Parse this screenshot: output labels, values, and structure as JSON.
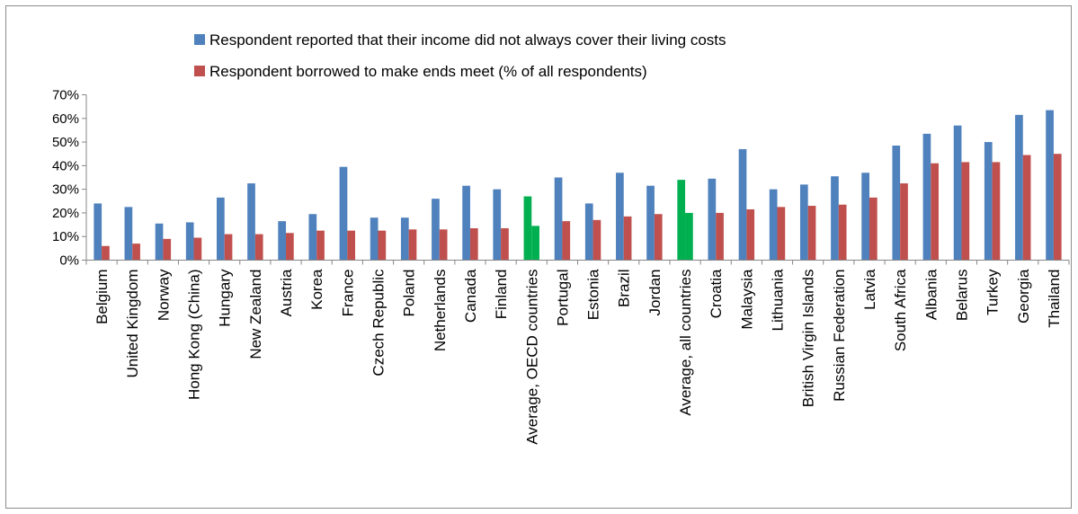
{
  "chart_data": {
    "type": "bar",
    "title": "",
    "xlabel": "",
    "ylabel": "",
    "ylim": [
      0,
      70
    ],
    "y_ticks": [
      "0%",
      "10%",
      "20%",
      "30%",
      "40%",
      "50%",
      "60%",
      "70%"
    ],
    "y_tick_values": [
      0,
      10,
      20,
      30,
      40,
      50,
      60,
      70
    ],
    "grid": false,
    "legend_position": "top",
    "categories": [
      "Belgium",
      "United Kingdom",
      "Norway",
      "Hong Kong (China)",
      "Hungary",
      "New Zealand",
      "Austria",
      "Korea",
      "France",
      "Czech Republic",
      "Poland",
      "Netherlands",
      "Canada",
      "Finland",
      "Average, OECD countries",
      "Portugal",
      "Estonia",
      "Brazil",
      "Jordan",
      "Average, all countries",
      "Croatia",
      "Malaysia",
      "Lithuania",
      "British Virgin Islands",
      "Russian Federation",
      "Latvia",
      "South Africa",
      "Albania",
      "Belarus",
      "Turkey",
      "Georgia",
      "Thailand"
    ],
    "highlight_categories": [
      "Average, OECD countries",
      "Average, all countries"
    ],
    "highlight_color": "#00b050",
    "series": [
      {
        "name": "Respondent reported that their income did not always cover their living costs",
        "color": "#4f81bd",
        "values": [
          24,
          22.5,
          15.5,
          16,
          26.5,
          32.5,
          16.5,
          19.5,
          39.5,
          18,
          18,
          26,
          31.5,
          30,
          27,
          35,
          24,
          37,
          31.5,
          34,
          34.5,
          47,
          30,
          32,
          35.5,
          37,
          48.5,
          53.5,
          57,
          50,
          61.5,
          63.5
        ]
      },
      {
        "name": "Respondent borrowed to make ends meet (% of all respondents)",
        "color": "#c0504d",
        "values": [
          6,
          7,
          9,
          9.5,
          11,
          11,
          11.5,
          12.5,
          12.5,
          12.5,
          13,
          13,
          13.5,
          13.5,
          14.5,
          16.5,
          17,
          18.5,
          19.5,
          20,
          20,
          21.5,
          22.5,
          23,
          23.5,
          26.5,
          32.5,
          41,
          41.5,
          41.5,
          44.5,
          45
        ]
      }
    ]
  }
}
